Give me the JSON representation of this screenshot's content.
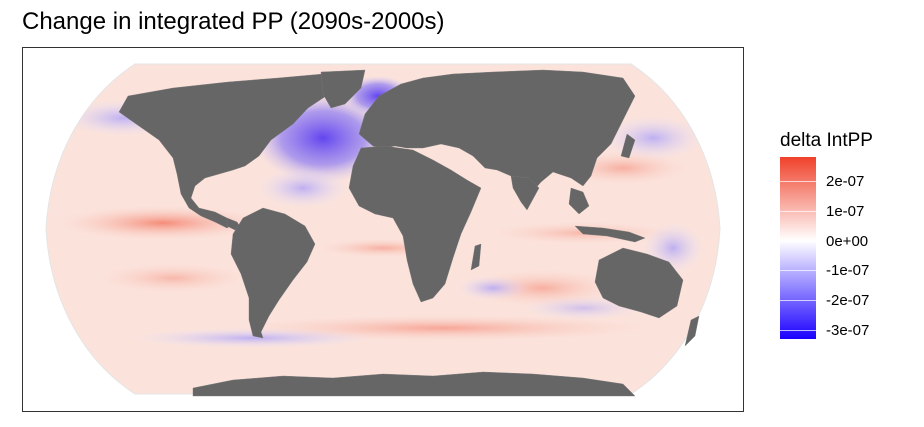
{
  "title": "Change in integrated PP (2090s-2000s)",
  "legend": {
    "title": "delta IntPP",
    "ticks": [
      {
        "label": "2e-07",
        "value": 2e-07
      },
      {
        "label": "1e-07",
        "value": 1e-07
      },
      {
        "label": "0e+00",
        "value": 0
      },
      {
        "label": "-1e-07",
        "value": -1e-07
      },
      {
        "label": "-2e-07",
        "value": -2e-07
      },
      {
        "label": "-3e-07",
        "value": -3e-07
      }
    ],
    "range": [
      -3.3e-07,
      2.8e-07
    ],
    "colors": {
      "high": "#f0412a",
      "mid": "#ffffff",
      "low": "#1a00ff"
    }
  },
  "colors": {
    "land": "#666666",
    "ocean_base": "#fbe3dc",
    "frame": "#333333"
  },
  "projection": "Robinson"
}
